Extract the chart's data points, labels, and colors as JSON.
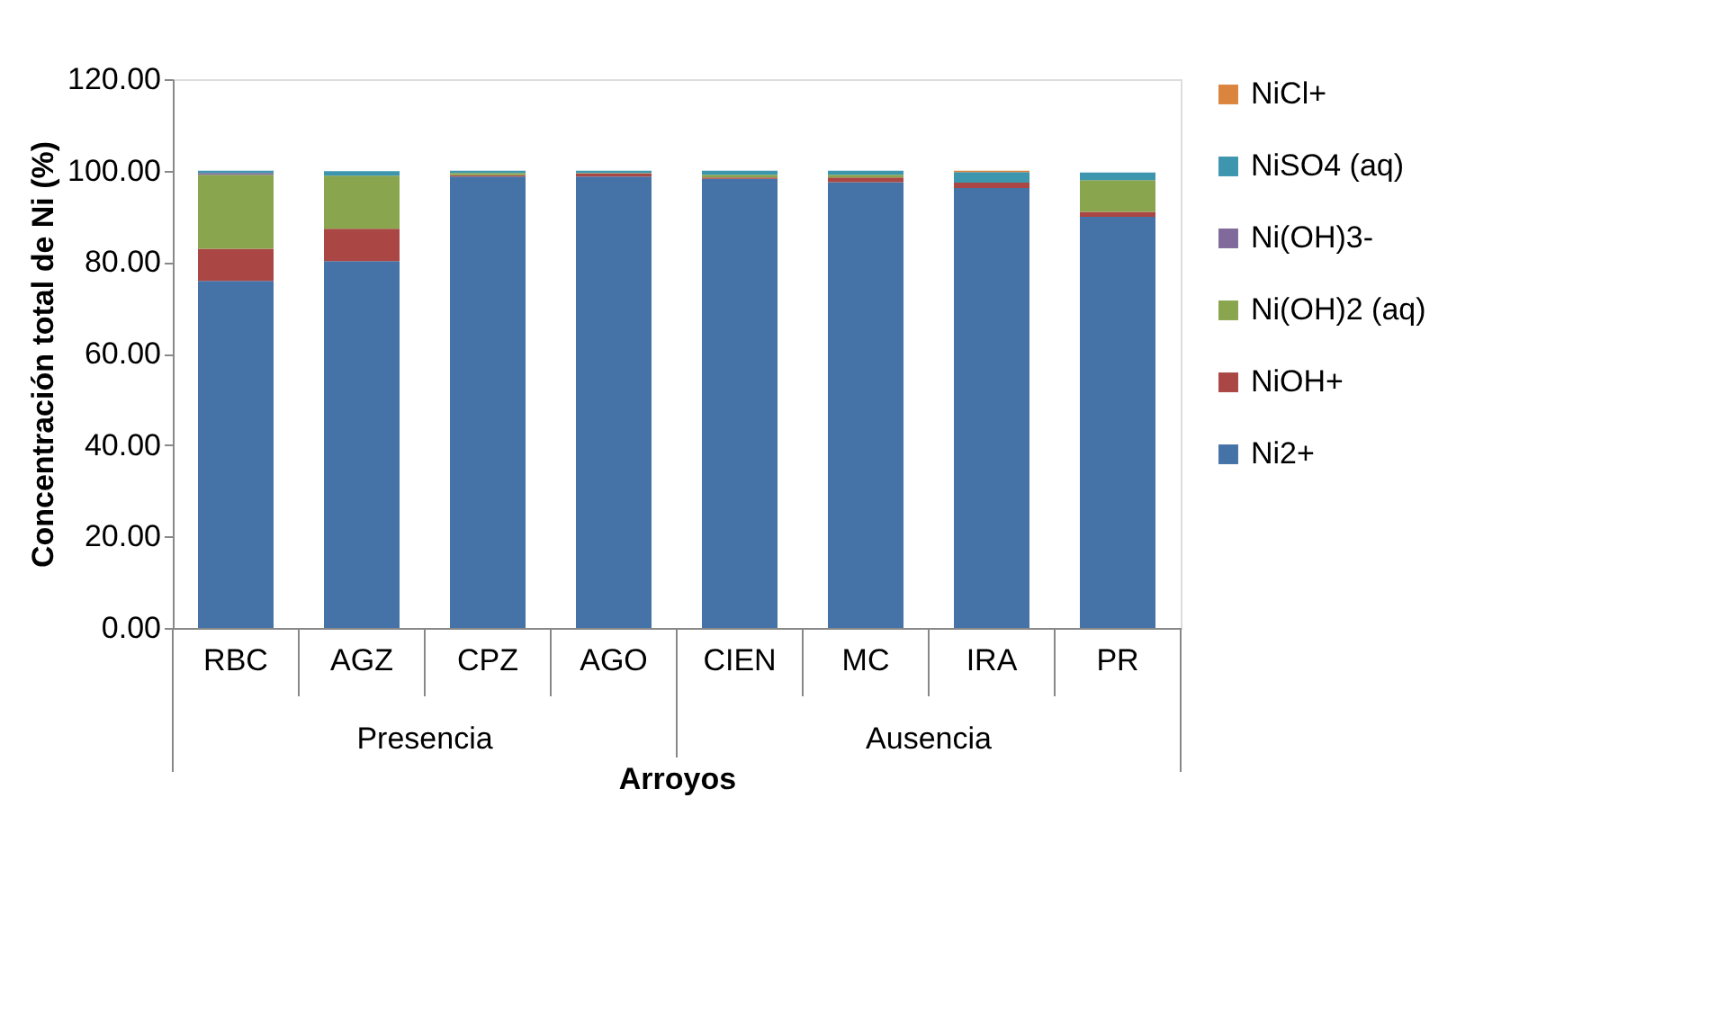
{
  "chart_data": {
    "type": "bar",
    "stacked": true,
    "xlabel": "Arroyos",
    "ylabel": "Concentración total de Ni (%)",
    "categories": [
      "RBC",
      "AGZ",
      "CPZ",
      "AGO",
      "CIEN",
      "MC",
      "IRA",
      "PR"
    ],
    "series": [
      {
        "name": "Ni2+",
        "color": "#4572a7",
        "values": [
          75.9,
          80.2,
          98.7,
          98.7,
          98.2,
          97.5,
          96.2,
          89.9
        ]
      },
      {
        "name": "NiOH+",
        "color": "#aa4643",
        "values": [
          7.0,
          7.1,
          0.3,
          0.7,
          0.3,
          1.0,
          1.2,
          1.1
        ]
      },
      {
        "name": "Ni(OH)2 (aq)",
        "color": "#89a54e",
        "values": [
          16.2,
          11.6,
          0.5,
          0.1,
          0.6,
          0.6,
          0.0,
          6.9
        ]
      },
      {
        "name": "Ni(OH)3-",
        "color": "#80699b",
        "values": [
          0.4,
          null,
          0.0,
          0.0,
          0.0,
          0.0,
          0.0,
          0.0
        ]
      },
      {
        "name": "NiSO4 (aq)",
        "color": "#3d96ae",
        "values": [
          0.5,
          1.0,
          0.5,
          0.5,
          0.9,
          0.9,
          2.3,
          1.7
        ]
      },
      {
        "name": "NiCl+",
        "color": "#db843d",
        "values": [
          0.0,
          0.0,
          0.0,
          0.0,
          0.0,
          0.0,
          0.3,
          0.0
        ]
      }
    ],
    "ylim": [
      0,
      120
    ],
    "yticks": [
      {
        "value": 0,
        "label": "0.00"
      },
      {
        "value": 20,
        "label": "20.00"
      },
      {
        "value": 40,
        "label": "40.00"
      },
      {
        "value": 60,
        "label": "60.00"
      },
      {
        "value": 80,
        "label": "80.00"
      },
      {
        "value": 100,
        "label": "100.00"
      },
      {
        "value": 120,
        "label": "120.00"
      }
    ],
    "annotations": [
      "Presencia",
      "Ausencia"
    ],
    "legend": "right",
    "grid": false
  }
}
